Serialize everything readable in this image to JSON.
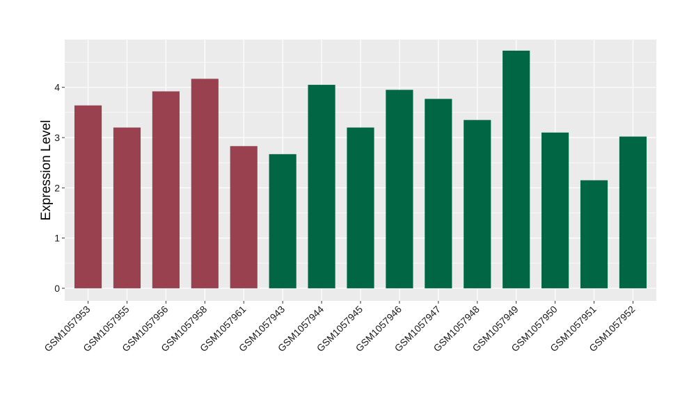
{
  "chart_data": {
    "type": "bar",
    "title": "",
    "xlabel": "",
    "ylabel": "Expression Level",
    "ylim": [
      -0.25,
      4.95
    ],
    "yticks": [
      0,
      1,
      2,
      3,
      4
    ],
    "grid": true,
    "legend": "none",
    "categories": [
      "GSM1057953",
      "GSM1057955",
      "GSM1057956",
      "GSM1057958",
      "GSM1057961",
      "GSM1057943",
      "GSM1057944",
      "GSM1057945",
      "GSM1057946",
      "GSM1057947",
      "GSM1057948",
      "GSM1057949",
      "GSM1057950",
      "GSM1057951",
      "GSM1057952"
    ],
    "values": [
      3.64,
      3.2,
      3.92,
      4.17,
      2.83,
      2.67,
      4.05,
      3.2,
      3.95,
      3.77,
      3.35,
      4.73,
      3.1,
      2.15,
      3.02
    ],
    "groups": [
      0,
      0,
      0,
      0,
      0,
      1,
      1,
      1,
      1,
      1,
      1,
      1,
      1,
      1,
      1
    ],
    "colors": [
      "#99414f",
      "#006644"
    ],
    "panel_background": "#ebebeb",
    "grid_color": "#ffffff"
  }
}
